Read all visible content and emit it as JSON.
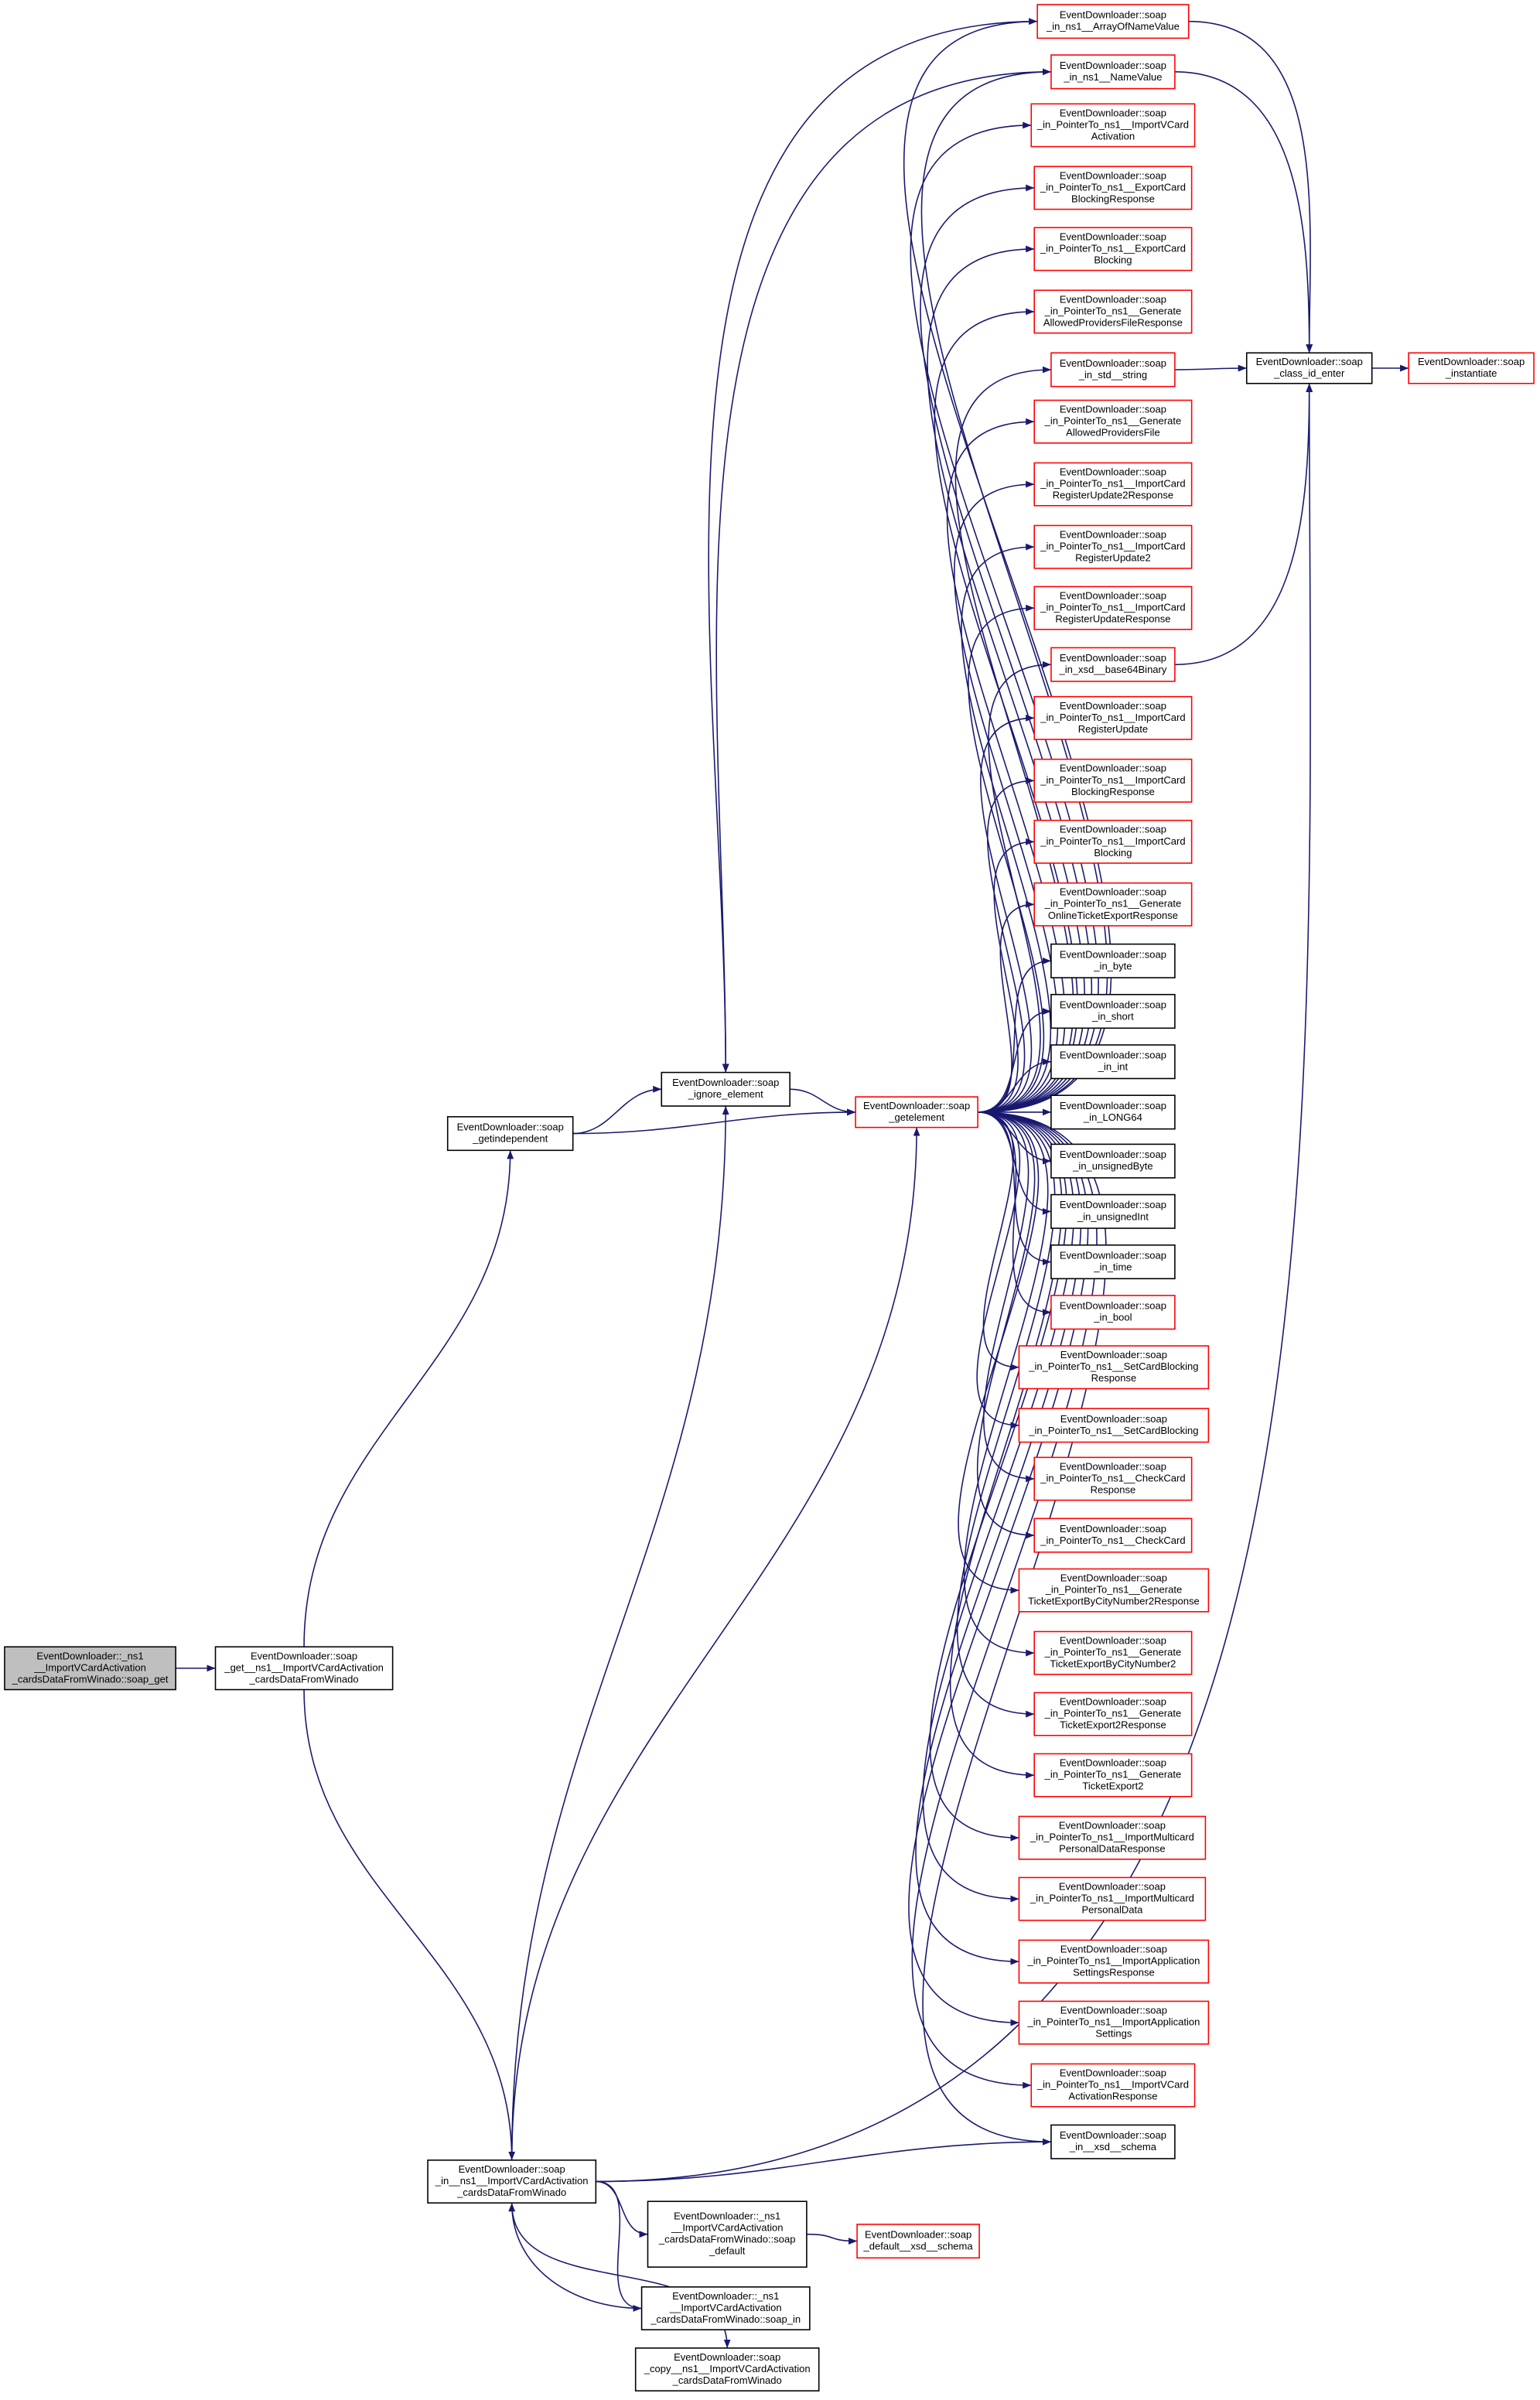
{
  "nodes": [
    {
      "lines": [
        "EventDownloader::_ns1",
        "__ImportVCardActivation",
        "_cardsDataFromWinado::soap_get"
      ]
    },
    {
      "lines": [
        "EventDownloader::soap",
        "_get__ns1__ImportVCardActivation",
        "_cardsDataFromWinado"
      ]
    },
    {
      "lines": [
        "EventDownloader::soap",
        "_getindependent"
      ]
    },
    {
      "lines": [
        "EventDownloader::soap",
        "_ignore_element"
      ]
    },
    {
      "lines": [
        "EventDownloader::soap",
        "_getelement"
      ]
    },
    {
      "lines": [
        "EventDownloader::soap",
        "_in__ns1__ImportVCardActivation",
        "_cardsDataFromWinado"
      ]
    },
    {
      "lines": [
        "EventDownloader::_ns1",
        "__ImportVCardActivation",
        "_cardsDataFromWinado::soap",
        "_default"
      ]
    },
    {
      "lines": [
        "EventDownloader::_ns1",
        "__ImportVCardActivation",
        "_cardsDataFromWinado::soap_in"
      ]
    },
    {
      "lines": [
        "EventDownloader::soap",
        "_copy__ns1__ImportVCardActivation",
        "_cardsDataFromWinado"
      ]
    },
    {
      "lines": [
        "EventDownloader::soap",
        "_default__xsd__schema"
      ]
    },
    {
      "lines": [
        "EventDownloader::soap",
        "_class_id_enter"
      ]
    },
    {
      "lines": [
        "EventDownloader::soap",
        "_instantiate"
      ]
    },
    {
      "lines": [
        "EventDownloader::soap",
        "_in_ns1__ArrayOfNameValue"
      ]
    },
    {
      "lines": [
        "EventDownloader::soap",
        "_in_ns1__NameValue"
      ]
    },
    {
      "lines": [
        "EventDownloader::soap",
        "_in_PointerTo_ns1__ImportVCard",
        "Activation"
      ]
    },
    {
      "lines": [
        "EventDownloader::soap",
        "_in_PointerTo_ns1__ExportCard",
        "BlockingResponse"
      ]
    },
    {
      "lines": [
        "EventDownloader::soap",
        "_in_PointerTo_ns1__ExportCard",
        "Blocking"
      ]
    },
    {
      "lines": [
        "EventDownloader::soap",
        "_in_PointerTo_ns1__Generate",
        "AllowedProvidersFileResponse"
      ]
    },
    {
      "lines": [
        "EventDownloader::soap",
        "_in_std__string"
      ]
    },
    {
      "lines": [
        "EventDownloader::soap",
        "_in_PointerTo_ns1__Generate",
        "AllowedProvidersFile"
      ]
    },
    {
      "lines": [
        "EventDownloader::soap",
        "_in_PointerTo_ns1__ImportCard",
        "RegisterUpdate2Response"
      ]
    },
    {
      "lines": [
        "EventDownloader::soap",
        "_in_PointerTo_ns1__ImportCard",
        "RegisterUpdate2"
      ]
    },
    {
      "lines": [
        "EventDownloader::soap",
        "_in_PointerTo_ns1__ImportCard",
        "RegisterUpdateResponse"
      ]
    },
    {
      "lines": [
        "EventDownloader::soap",
        "_in_xsd__base64Binary"
      ]
    },
    {
      "lines": [
        "EventDownloader::soap",
        "_in_PointerTo_ns1__ImportCard",
        "RegisterUpdate"
      ]
    },
    {
      "lines": [
        "EventDownloader::soap",
        "_in_PointerTo_ns1__ImportCard",
        "BlockingResponse"
      ]
    },
    {
      "lines": [
        "EventDownloader::soap",
        "_in_PointerTo_ns1__ImportCard",
        "Blocking"
      ]
    },
    {
      "lines": [
        "EventDownloader::soap",
        "_in_PointerTo_ns1__Generate",
        "OnlineTicketExportResponse"
      ]
    },
    {
      "lines": [
        "EventDownloader::soap",
        "_in_byte"
      ]
    },
    {
      "lines": [
        "EventDownloader::soap",
        "_in_short"
      ]
    },
    {
      "lines": [
        "EventDownloader::soap",
        "_in_int"
      ]
    },
    {
      "lines": [
        "EventDownloader::soap",
        "_in_LONG64"
      ]
    },
    {
      "lines": [
        "EventDownloader::soap",
        "_in_unsignedByte"
      ]
    },
    {
      "lines": [
        "EventDownloader::soap",
        "_in_unsignedInt"
      ]
    },
    {
      "lines": [
        "EventDownloader::soap",
        "_in_time"
      ]
    },
    {
      "lines": [
        "EventDownloader::soap",
        "_in_bool"
      ]
    },
    {
      "lines": [
        "EventDownloader::soap",
        "_in_PointerTo_ns1__SetCardBlocking",
        "Response"
      ]
    },
    {
      "lines": [
        "EventDownloader::soap",
        "_in_PointerTo_ns1__SetCardBlocking"
      ]
    },
    {
      "lines": [
        "EventDownloader::soap",
        "_in_PointerTo_ns1__CheckCard",
        "Response"
      ]
    },
    {
      "lines": [
        "EventDownloader::soap",
        "_in_PointerTo_ns1__CheckCard"
      ]
    },
    {
      "lines": [
        "EventDownloader::soap",
        "_in_PointerTo_ns1__Generate",
        "TicketExportByCityNumber2Response"
      ]
    },
    {
      "lines": [
        "EventDownloader::soap",
        "_in_PointerTo_ns1__Generate",
        "TicketExportByCityNumber2"
      ]
    },
    {
      "lines": [
        "EventDownloader::soap",
        "_in_PointerTo_ns1__Generate",
        "TicketExport2Response"
      ]
    },
    {
      "lines": [
        "EventDownloader::soap",
        "_in_PointerTo_ns1__Generate",
        "TicketExport2"
      ]
    },
    {
      "lines": [
        "EventDownloader::soap",
        "_in_PointerTo_ns1__ImportMulticard",
        "PersonalDataResponse"
      ]
    },
    {
      "lines": [
        "EventDownloader::soap",
        "_in_PointerTo_ns1__ImportMulticard",
        "PersonalData"
      ]
    },
    {
      "lines": [
        "EventDownloader::soap",
        "_in_PointerTo_ns1__ImportApplication",
        "SettingsResponse"
      ]
    },
    {
      "lines": [
        "EventDownloader::soap",
        "_in_PointerTo_ns1__ImportApplication",
        "Settings"
      ]
    },
    {
      "lines": [
        "EventDownloader::soap",
        "_in_PointerTo_ns1__ImportVCard",
        "ActivationResponse"
      ]
    },
    {
      "lines": [
        "EventDownloader::soap",
        "_in__xsd__schema"
      ]
    }
  ]
}
